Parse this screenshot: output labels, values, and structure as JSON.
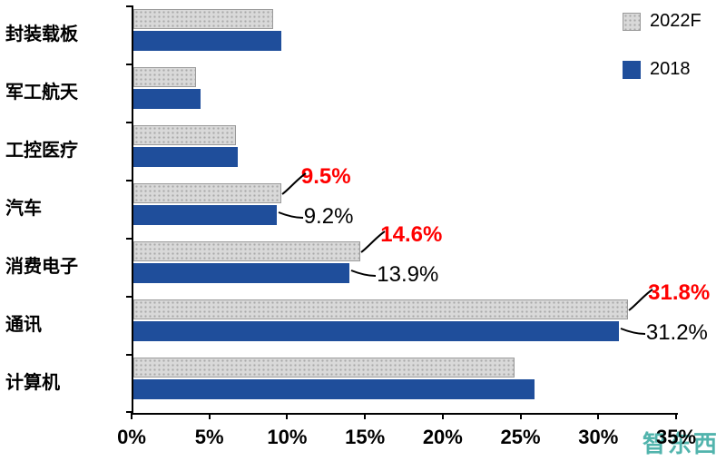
{
  "chart_data": {
    "type": "bar",
    "orientation": "horizontal",
    "title": "",
    "categories": [
      "封装载板",
      "军工航天",
      "工控医疗",
      "汽车",
      "消费电子",
      "通讯",
      "计算机"
    ],
    "series": [
      {
        "name": "2022F",
        "color": "#d9d9d9",
        "values": [
          9.0,
          4.0,
          6.6,
          9.5,
          14.6,
          31.8,
          24.5
        ]
      },
      {
        "name": "2018",
        "color": "#1f4e9b",
        "values": [
          9.5,
          4.3,
          6.7,
          9.2,
          13.9,
          31.2,
          25.8
        ]
      }
    ],
    "annotations": [
      {
        "category": "汽车",
        "series": "2022F",
        "text": "9.5%",
        "color": "#ff0000"
      },
      {
        "category": "汽车",
        "series": "2018",
        "text": "9.2%",
        "color": "#000000"
      },
      {
        "category": "消费电子",
        "series": "2022F",
        "text": "14.6%",
        "color": "#ff0000"
      },
      {
        "category": "消费电子",
        "series": "2018",
        "text": "13.9%",
        "color": "#000000"
      },
      {
        "category": "通讯",
        "series": "2022F",
        "text": "31.8%",
        "color": "#ff0000"
      },
      {
        "category": "通讯",
        "series": "2018",
        "text": "31.2%",
        "color": "#000000"
      }
    ],
    "x_ticks": [
      "0%",
      "5%",
      "10%",
      "15%",
      "20%",
      "25%",
      "30%",
      "35%"
    ],
    "xlim": [
      0,
      35
    ],
    "grid": false,
    "legend": [
      {
        "label": "2022F",
        "color": "#d9d9d9",
        "pattern": "dotted"
      },
      {
        "label": "2018",
        "color": "#1f4e9b",
        "pattern": "solid"
      }
    ],
    "legend_position": "top-right"
  },
  "watermark": {
    "text": "智东西"
  }
}
